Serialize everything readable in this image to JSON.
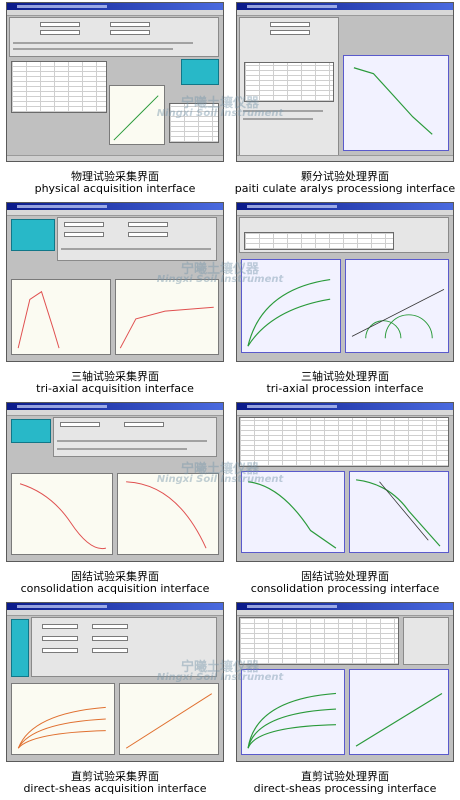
{
  "watermark": {
    "cn": "宁曦土壤仪器",
    "en": "Ningxi Soil Instrument"
  },
  "panels": [
    {
      "cn": "物理试验采集界面",
      "en": "physical acquisition interface"
    },
    {
      "cn": "颗分试验处理界面",
      "en": "paiti culate aralys processiong interface"
    },
    {
      "cn": "三轴试验采集界面",
      "en": "tri-axial acquisition interface"
    },
    {
      "cn": "三轴试验处理界面",
      "en": "tri-axial procession interface"
    },
    {
      "cn": "固结试验采集界面",
      "en": "consolidation acquisition interface"
    },
    {
      "cn": "固结试验处理界面",
      "en": "consolidation processing interface"
    },
    {
      "cn": "直剪试验采集界面",
      "en": "direct-sheas acquisition interface"
    },
    {
      "cn": "直剪试验处理界面",
      "en": "direct-sheas processing interface"
    }
  ]
}
